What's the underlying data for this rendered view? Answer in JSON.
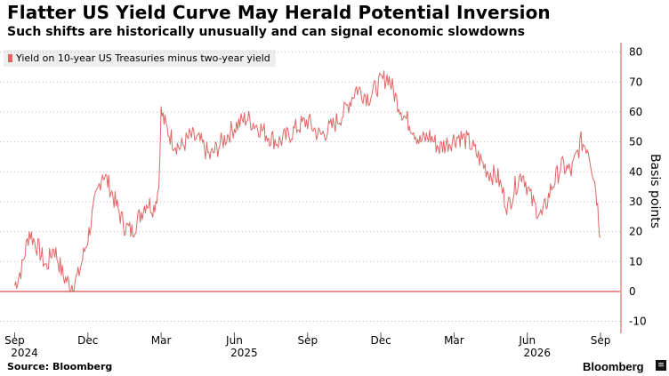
{
  "header": {
    "title": "Flatter US Yield Curve May Herald Potential Inversion",
    "subtitle": "Such shifts are historically unusually and can signal economic slowdowns"
  },
  "footer": {
    "source": "Source: Bloomberg",
    "brand": "Bloomberg"
  },
  "colors": {
    "series": "#e06666",
    "zero_line": "#e74c4c",
    "grid": "#bbbbbb",
    "axis": "#e74c4c"
  },
  "chart_data": {
    "type": "line",
    "legend": {
      "entries": [
        "Yield on 10-year US Treasuries minus two-year yield"
      ],
      "placement": "top-left"
    },
    "ylabel": "Basis points",
    "xlabel": "",
    "ylim": [
      -14,
      82
    ],
    "yticks": [
      -10,
      0,
      10,
      20,
      30,
      40,
      50,
      60,
      70,
      80
    ],
    "grid": true,
    "x_tick_labels": [
      {
        "label": "Sep",
        "year": "2024"
      },
      {
        "label": "Dec",
        "year": ""
      },
      {
        "label": "Mar",
        "year": ""
      },
      {
        "label": "Jun",
        "year": "2025"
      },
      {
        "label": "Sep",
        "year": ""
      },
      {
        "label": "Dec",
        "year": ""
      },
      {
        "label": "Mar",
        "year": ""
      },
      {
        "label": "Jun",
        "year": "2026"
      },
      {
        "label": "Sep",
        "year": ""
      }
    ],
    "x_tick_months": [
      0,
      3,
      6,
      9,
      12,
      15,
      18,
      21,
      24
    ],
    "series": [
      {
        "name": "Yield on 10-year US Treasuries minus two-year yield",
        "x_months": [
          0,
          0.3,
          0.6,
          1.0,
          1.3,
          1.6,
          2.0,
          2.3,
          2.6,
          3.0,
          3.3,
          3.6,
          3.9,
          4.2,
          4.5,
          4.8,
          5.1,
          5.4,
          5.7,
          5.9,
          6.0,
          6.2,
          6.5,
          6.8,
          7.2,
          7.6,
          8.0,
          8.5,
          9.0,
          9.5,
          10.0,
          10.4,
          10.8,
          11.2,
          11.6,
          12.0,
          12.5,
          13.0,
          13.5,
          14.0,
          14.5,
          15.0,
          15.3,
          15.6,
          16.0,
          16.3,
          16.6,
          17.0,
          17.4,
          17.8,
          18.2,
          18.6,
          19.0,
          19.4,
          19.8,
          20.2,
          20.5,
          20.8,
          21.2,
          21.6,
          22.0,
          22.4,
          22.8,
          23.2,
          23.5,
          23.8,
          24.0
        ],
        "values": [
          2,
          8,
          20,
          14,
          8,
          15,
          5,
          2,
          5,
          18,
          30,
          40,
          35,
          28,
          22,
          20,
          25,
          30,
          28,
          35,
          60,
          55,
          50,
          48,
          52,
          50,
          45,
          50,
          55,
          58,
          55,
          52,
          50,
          52,
          55,
          57,
          52,
          55,
          60,
          68,
          65,
          70,
          72,
          65,
          58,
          55,
          50,
          52,
          48,
          50,
          52,
          50,
          45,
          40,
          38,
          28,
          35,
          40,
          30,
          25,
          35,
          42,
          40,
          50,
          48,
          35,
          18
        ]
      }
    ]
  }
}
